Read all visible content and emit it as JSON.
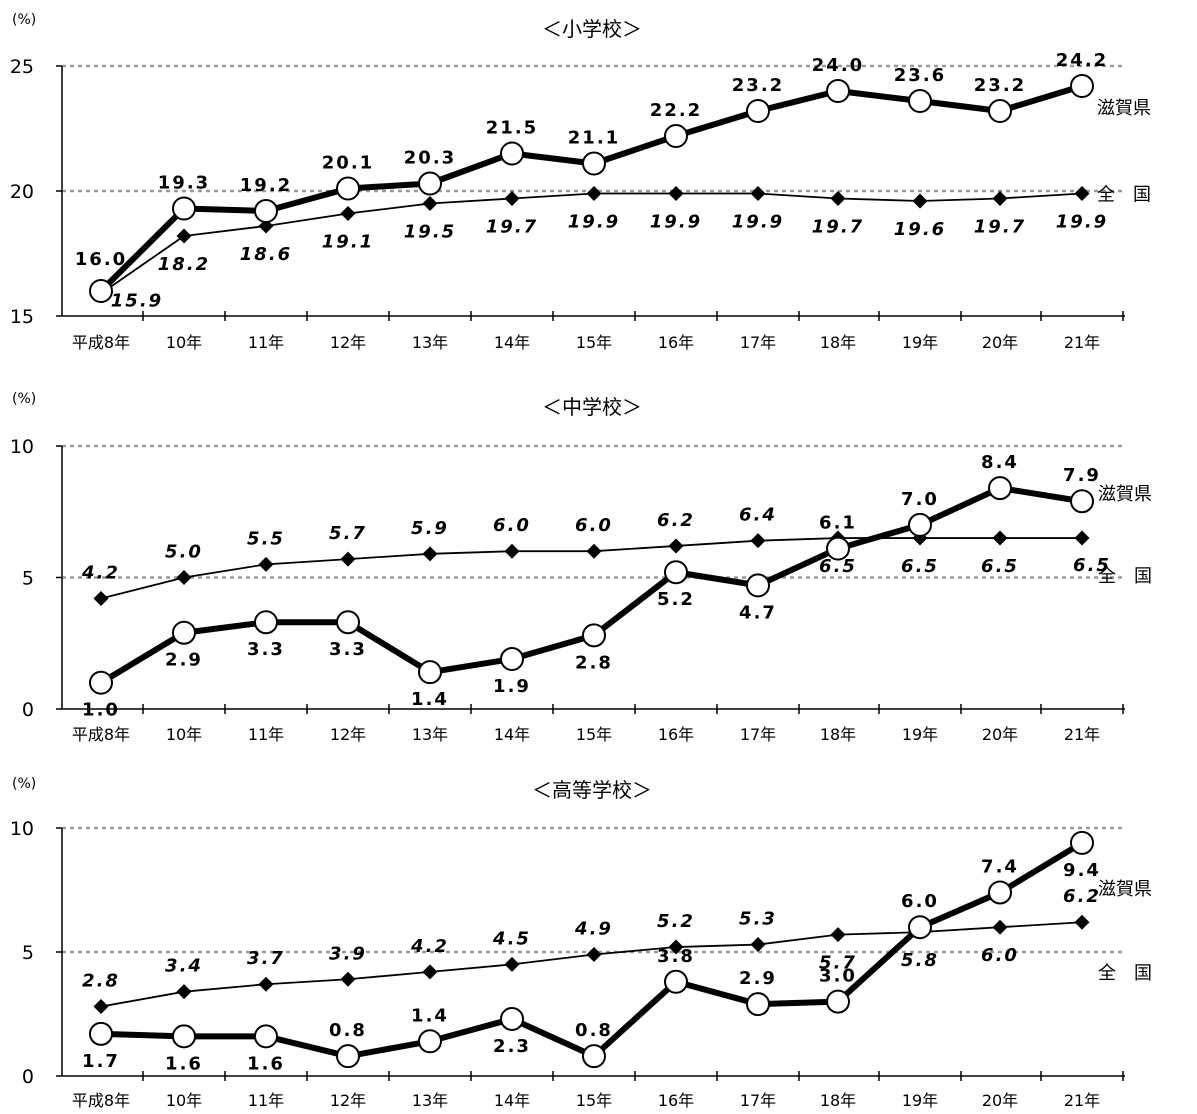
{
  "chart_data": [
    {
      "type": "line",
      "title": "＜小学校＞",
      "unit": "(%)",
      "categories": [
        "平成8年",
        "10年",
        "11年",
        "12年",
        "13年",
        "14年",
        "15年",
        "16年",
        "17年",
        "18年",
        "19年",
        "20年",
        "21年"
      ],
      "ylim": [
        15,
        25
      ],
      "yticks": [
        "15",
        "20",
        "25"
      ],
      "grid": "dashed at 20 and 25",
      "series": [
        {
          "name": "滋賀県",
          "marker": "open-circle",
          "line": "thick",
          "color": "#000000",
          "values": [
            16.0,
            19.3,
            19.2,
            20.1,
            20.3,
            21.5,
            21.1,
            22.2,
            23.2,
            24.0,
            23.6,
            23.2,
            24.2
          ],
          "labels": [
            "16.0",
            "19.3",
            "19.2",
            "20.1",
            "20.3",
            "21.5",
            "21.1",
            "22.2",
            "23.2",
            "24.0",
            "23.6",
            "23.2",
            "24.2"
          ]
        },
        {
          "name": "全　国",
          "marker": "diamond",
          "line": "thin",
          "color": "#000000",
          "values": [
            15.9,
            18.2,
            18.6,
            19.1,
            19.5,
            19.7,
            19.9,
            19.9,
            19.9,
            19.7,
            19.6,
            19.7,
            19.9
          ],
          "labels": [
            "15.9",
            "18.2",
            "18.6",
            "19.1",
            "19.5",
            "19.7",
            "19.9",
            "19.9",
            "19.9",
            "19.7",
            "19.6",
            "19.7",
            "19.9"
          ]
        }
      ]
    },
    {
      "type": "line",
      "title": "＜中学校＞",
      "unit": "(%)",
      "categories": [
        "平成8年",
        "10年",
        "11年",
        "12年",
        "13年",
        "14年",
        "15年",
        "16年",
        "17年",
        "18年",
        "19年",
        "20年",
        "21年"
      ],
      "ylim": [
        0,
        10
      ],
      "yticks": [
        "0",
        "5",
        "10"
      ],
      "grid": "dashed at 5 and 10",
      "series": [
        {
          "name": "滋賀県",
          "marker": "open-circle",
          "line": "thick",
          "color": "#000000",
          "values": [
            1.0,
            2.9,
            3.3,
            3.3,
            1.4,
            1.9,
            2.8,
            5.2,
            4.7,
            6.1,
            7.0,
            8.4,
            7.9
          ],
          "labels": [
            "1.0",
            "2.9",
            "3.3",
            "3.3",
            "1.4",
            "1.9",
            "2.8",
            "5.2",
            "4.7",
            "6.1",
            "7.0",
            "8.4",
            "7.9"
          ]
        },
        {
          "name": "全　国",
          "marker": "diamond",
          "line": "thin",
          "color": "#000000",
          "values": [
            4.2,
            5.0,
            5.5,
            5.7,
            5.9,
            6.0,
            6.0,
            6.2,
            6.4,
            6.5,
            6.5,
            6.5,
            6.5
          ],
          "labels": [
            "4.2",
            "5.0",
            "5.5",
            "5.7",
            "5.9",
            "6.0",
            "6.0",
            "6.2",
            "6.4",
            "6.5",
            "6.5",
            "6.5",
            "6.5"
          ]
        }
      ]
    },
    {
      "type": "line",
      "title": "＜高等学校＞",
      "unit": "(%)",
      "categories": [
        "平成8年",
        "10年",
        "11年",
        "12年",
        "13年",
        "14年",
        "15年",
        "16年",
        "17年",
        "18年",
        "19年",
        "20年",
        "21年"
      ],
      "ylim": [
        0,
        10
      ],
      "yticks": [
        "0",
        "5",
        "10"
      ],
      "grid": "dashed at 5 and 10",
      "series": [
        {
          "name": "滋賀県",
          "marker": "open-circle",
          "line": "thick",
          "color": "#000000",
          "values": [
            1.7,
            1.6,
            1.6,
            0.8,
            1.4,
            2.3,
            0.8,
            3.8,
            2.9,
            3.0,
            6.0,
            7.4,
            9.4
          ],
          "labels": [
            "1.7",
            "1.6",
            "1.6",
            "0.8",
            "1.4",
            "2.3",
            "0.8",
            "3.8",
            "2.9",
            "3.0",
            "6.0",
            "7.4",
            "9.4"
          ]
        },
        {
          "name": "全　国",
          "marker": "diamond",
          "line": "thin",
          "color": "#000000",
          "values": [
            2.8,
            3.4,
            3.7,
            3.9,
            4.2,
            4.5,
            4.9,
            5.2,
            5.3,
            5.7,
            5.8,
            6.0,
            6.2
          ],
          "labels": [
            "2.8",
            "3.4",
            "3.7",
            "3.9",
            "4.2",
            "4.5",
            "4.9",
            "5.2",
            "5.3",
            "5.7",
            "5.8",
            "6.0",
            "6.2"
          ]
        }
      ]
    }
  ]
}
